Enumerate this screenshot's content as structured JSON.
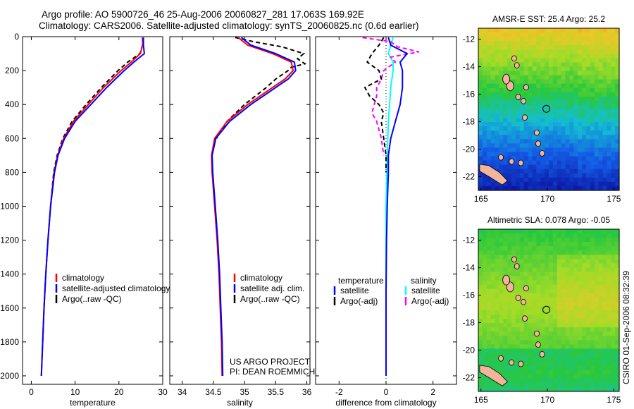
{
  "header": {
    "title_line1": "Argo profile: AO 5900726_46 25-Aug-2006 20060827_281 17.063S 169.92E",
    "title_line2": "Climatology: CARS2006. Satellite-adjusted climatology: synTS_20060825.nc (0.6d earlier)"
  },
  "colors": {
    "climatology": "#ff0000",
    "satellite": "#0000ff",
    "argo": "#000000",
    "satellite_salinity": "#00ffff",
    "argo_salinity": "#ff00ff"
  },
  "credit": {
    "line1": "US ARGO PROJECT",
    "line2": "PI: DEAN ROEMMICH",
    "side_stamp": "CSIRO 01-Sep-2006 08:32:39"
  },
  "chart_data": [
    {
      "type": "line",
      "id": "temperature",
      "xlabel": "temperature",
      "ylabel": "",
      "xlim": [
        -2,
        30
      ],
      "ylim": [
        2050,
        0
      ],
      "xticks": [
        0,
        10,
        20,
        30
      ],
      "yticks": [
        0,
        200,
        400,
        600,
        800,
        1000,
        1200,
        1400,
        1600,
        1800,
        2000
      ],
      "legend": {
        "placement": "lower-center",
        "labels": [
          "climatology",
          "satellite-adjusted climatology",
          "Argo(..raw -QC)"
        ]
      },
      "series": [
        {
          "name": "climatology",
          "color": "#ff0000",
          "dash": "none",
          "depth": [
            5,
            50,
            100,
            150,
            200,
            300,
            400,
            500,
            600,
            700,
            800,
            1000,
            1200,
            1400,
            1600,
            1800,
            2000
          ],
          "values": [
            25.5,
            25.4,
            24.9,
            22.8,
            20.5,
            16.5,
            13.0,
            9.6,
            7.4,
            6.0,
            5.2,
            4.4,
            3.8,
            3.3,
            2.9,
            2.6,
            2.3
          ]
        },
        {
          "name": "satellite-adjusted climatology",
          "color": "#0000ff",
          "dash": "none",
          "depth": [
            5,
            50,
            100,
            150,
            200,
            300,
            400,
            500,
            600,
            700,
            800,
            1000,
            1200,
            1400,
            1600,
            1800,
            2000
          ],
          "values": [
            25.6,
            25.6,
            25.8,
            23.4,
            21.2,
            17.2,
            13.6,
            10.0,
            7.6,
            6.1,
            5.3,
            4.4,
            3.8,
            3.3,
            2.9,
            2.6,
            2.3
          ]
        },
        {
          "name": "Argo(..raw -QC)",
          "color": "#000000",
          "dash": "6,4",
          "depth": [
            5,
            50,
            100,
            150,
            200,
            300,
            400,
            500,
            600,
            700,
            800,
            1000
          ],
          "values": [
            25.4,
            25.4,
            24.8,
            22.0,
            19.8,
            16.0,
            12.5,
            9.3,
            7.2,
            5.9,
            5.1,
            4.4
          ]
        }
      ]
    },
    {
      "type": "line",
      "id": "salinity",
      "xlabel": "salinity",
      "ylabel": "",
      "xlim": [
        33.8,
        36.05
      ],
      "ylim": [
        2050,
        0
      ],
      "xticks": [
        34,
        34.5,
        35,
        35.5,
        36
      ],
      "xticklabels": [
        "34",
        "34.5",
        "35",
        "35.5",
        "36"
      ],
      "legend": {
        "placement": "lower-center",
        "labels": [
          "climatology",
          "satellite adj. clim.",
          "Argo(..raw -QC)"
        ]
      },
      "series": [
        {
          "name": "climatology",
          "color": "#ff0000",
          "dash": "none",
          "depth": [
            5,
            50,
            100,
            150,
            200,
            250,
            300,
            400,
            500,
            600,
            700,
            800,
            1000,
            1200,
            1400,
            1600,
            1800,
            2000
          ],
          "values": [
            34.9,
            35.05,
            35.45,
            35.75,
            35.78,
            35.65,
            35.45,
            35.05,
            34.72,
            34.52,
            34.47,
            34.48,
            34.52,
            34.56,
            34.59,
            34.61,
            34.63,
            34.64
          ]
        },
        {
          "name": "satellite adj. clim.",
          "color": "#0000ff",
          "dash": "none",
          "depth": [
            5,
            50,
            100,
            150,
            200,
            250,
            300,
            400,
            500,
            600,
            700,
            800,
            1000,
            1200,
            1400,
            1600,
            1800,
            2000
          ],
          "values": [
            34.95,
            35.1,
            35.5,
            35.8,
            35.82,
            35.7,
            35.5,
            35.1,
            34.76,
            34.54,
            34.48,
            34.49,
            34.53,
            34.57,
            34.6,
            34.62,
            34.64,
            34.65
          ]
        },
        {
          "name": "Argo(..raw -QC)",
          "color": "#000000",
          "dash": "6,4",
          "depth": [
            5,
            30,
            60,
            100,
            130,
            160,
            180,
            200,
            250,
            300,
            400,
            500,
            600
          ],
          "values": [
            34.85,
            35.15,
            35.6,
            35.95,
            35.85,
            35.97,
            35.75,
            35.7,
            35.5,
            35.35,
            35.0,
            34.72,
            34.55
          ]
        }
      ]
    },
    {
      "type": "line",
      "id": "difference",
      "xlabel": "difference from climatology",
      "ylabel": "",
      "xlim": [
        -3,
        3
      ],
      "ylim": [
        2050,
        0
      ],
      "xticks": [
        -2,
        0,
        2
      ],
      "legend": {
        "placement": "lower-center",
        "headers": [
          "temperature",
          "salinity"
        ],
        "labels": [
          "satellite",
          "Argo(-adj)",
          "satellite",
          "Argo(-adj)"
        ]
      },
      "series": [
        {
          "name": "temperature satellite",
          "color": "#0000ff",
          "dash": "none",
          "depth": [
            5,
            50,
            100,
            150,
            200,
            300,
            400,
            500,
            600,
            700,
            800,
            1000,
            1200,
            1500,
            1800,
            2000
          ],
          "values": [
            0.1,
            0.2,
            0.9,
            0.6,
            0.7,
            0.7,
            0.6,
            0.4,
            0.2,
            0.1,
            0.1,
            0.05,
            0.02,
            0.0,
            0.0,
            0.0
          ]
        },
        {
          "name": "temperature Argo(-adj)",
          "color": "#000000",
          "dash": "6,4",
          "depth": [
            5,
            50,
            100,
            150,
            200,
            250,
            300,
            350,
            400,
            450,
            500,
            600,
            700,
            800
          ],
          "values": [
            -0.1,
            -0.3,
            -0.6,
            -0.8,
            -0.3,
            -0.2,
            -0.9,
            -0.7,
            -0.3,
            -0.1,
            -0.2,
            -0.1,
            0.0,
            0.0
          ]
        },
        {
          "name": "salinity satellite",
          "color": "#00ffff",
          "dash": "none",
          "depth": [
            5,
            50,
            100,
            150,
            200,
            300,
            400,
            500,
            700,
            1000,
            1500,
            2000
          ],
          "values": [
            0.3,
            0.2,
            0.1,
            0.3,
            0.3,
            0.2,
            0.15,
            0.1,
            0.05,
            0.0,
            0.0,
            0.0
          ]
        },
        {
          "name": "salinity Argo(-adj)",
          "color": "#ff00ff",
          "dash": "6,4",
          "depth": [
            5,
            30,
            60,
            90,
            120,
            150,
            200,
            250,
            300,
            350,
            400,
            450,
            500,
            600,
            700
          ],
          "values": [
            -1.0,
            0.2,
            0.5,
            1.4,
            0.2,
            0.4,
            -0.1,
            -0.2,
            -0.4,
            -0.4,
            -0.5,
            -0.6,
            -0.4,
            -0.2,
            -0.1
          ]
        }
      ]
    },
    {
      "type": "heatmap",
      "id": "amsr_sst",
      "title": "AMSR-E SST: 25.4 Argo: 25.2",
      "xlim": [
        164.8,
        175.4
      ],
      "ylim": [
        -23.0,
        -11.2
      ],
      "xticks": [
        165,
        170,
        175
      ],
      "yticks": [
        -12,
        -14,
        -16,
        -18,
        -20,
        -22
      ],
      "argo_position": [
        169.92,
        -17.063
      ]
    },
    {
      "type": "heatmap",
      "id": "altimetric_sla",
      "title": "Altimetric SLA: 0.078 Argo: -0.05",
      "xlim": [
        164.8,
        175.4
      ],
      "ylim": [
        -23.0,
        -11.2
      ],
      "xticks": [
        165,
        170,
        175
      ],
      "yticks": [
        -12,
        -14,
        -16,
        -18,
        -20,
        -22
      ],
      "argo_position": [
        169.92,
        -17.063
      ]
    }
  ]
}
